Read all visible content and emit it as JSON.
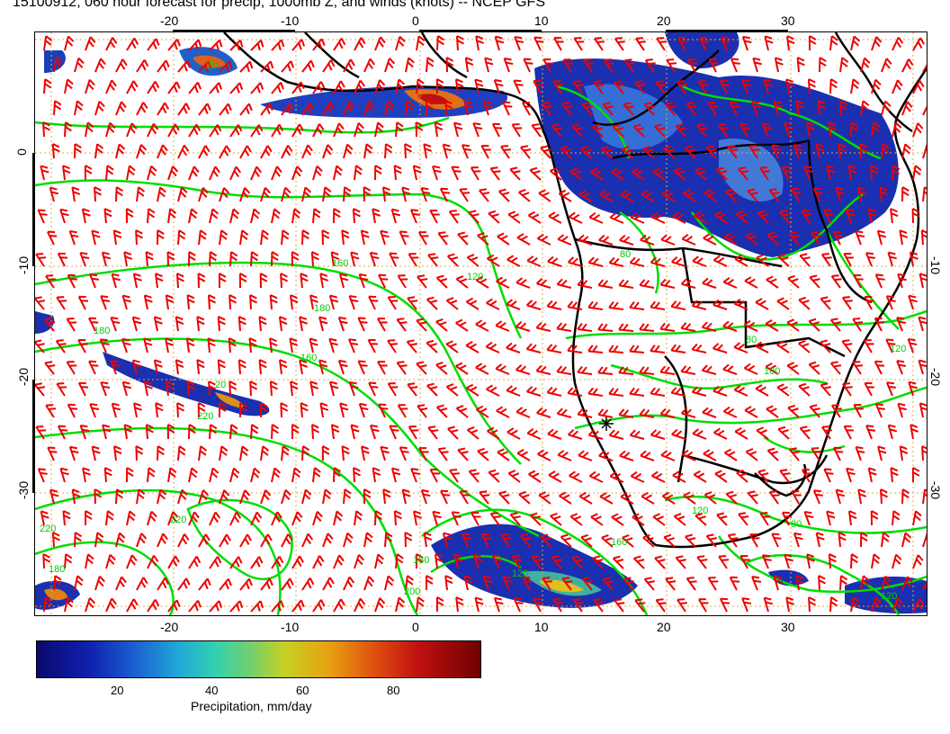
{
  "title": "15100912, 060 hour forecast for precip, 1000mb Z, and winds (knots) -- NCEP GFS",
  "map": {
    "lon_ticks": [
      "-20",
      "-10",
      "0",
      "10",
      "20",
      "30"
    ],
    "lat_ticks_left": [
      "0",
      "-10",
      "-20",
      "-30"
    ],
    "lat_ticks_right": [
      "-10",
      "-20",
      "-30"
    ],
    "contour_labels": [
      "20",
      "160",
      "180",
      "180",
      "160",
      "120",
      "20",
      "220",
      "220",
      "200",
      "180",
      "220",
      "180",
      "120",
      "80",
      "160",
      "100",
      "120",
      "80",
      "120",
      "120",
      "80"
    ],
    "colors": {
      "precip_low": "#0a0a6e",
      "precip_mid": "#1a60d0",
      "contour": "#00dd00",
      "wind_barb": "#ee0000",
      "coast": "#000000",
      "grid": "#ddaa44"
    }
  },
  "colorbar": {
    "ticks": [
      "20",
      "40",
      "60",
      "80"
    ],
    "label": "Precipitation, mm/day"
  }
}
